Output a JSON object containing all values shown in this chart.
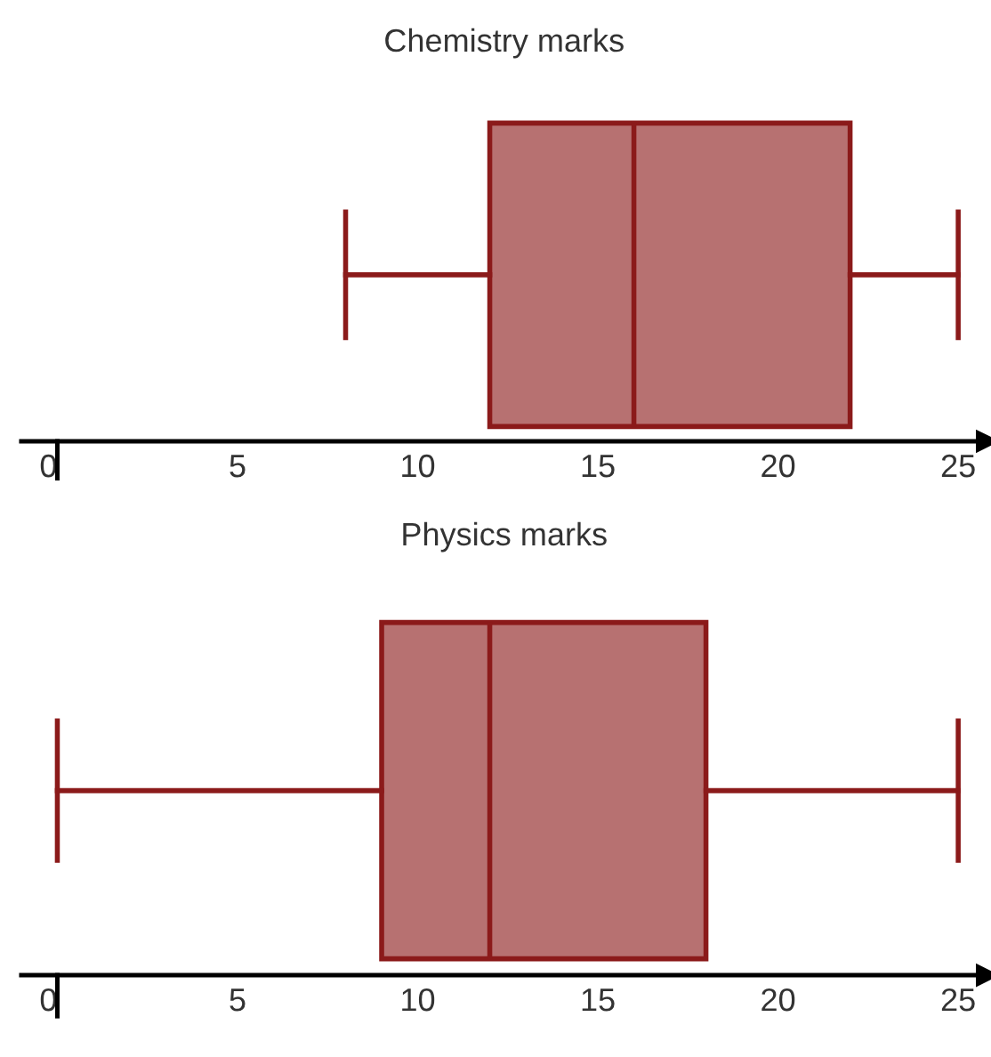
{
  "chart_data": [
    {
      "type": "box",
      "title": "Chemistry marks",
      "orientation": "horizontal",
      "categories": [
        null
      ],
      "xlim": [
        -1,
        25.8
      ],
      "xticks": [
        0,
        5,
        10,
        15,
        20,
        25
      ],
      "tick_labels": "x",
      "grid": false,
      "series": [
        {
          "color": "#8b1a1a",
          "boxes": [
            {
              "low": 8,
              "q1": 12,
              "median": 16,
              "q3": 22,
              "high": 25
            }
          ]
        }
      ]
    },
    {
      "type": "box",
      "title": "Physics marks",
      "orientation": "horizontal",
      "categories": [
        null
      ],
      "xlim": [
        -1,
        25.8
      ],
      "xticks": [
        0,
        5,
        10,
        15,
        20,
        25
      ],
      "tick_labels": "x",
      "grid": false,
      "series": [
        {
          "color": "#8b1a1a",
          "boxes": [
            {
              "low": 0,
              "q1": 9,
              "median": 12,
              "q3": 18,
              "high": 25
            }
          ]
        }
      ]
    }
  ]
}
